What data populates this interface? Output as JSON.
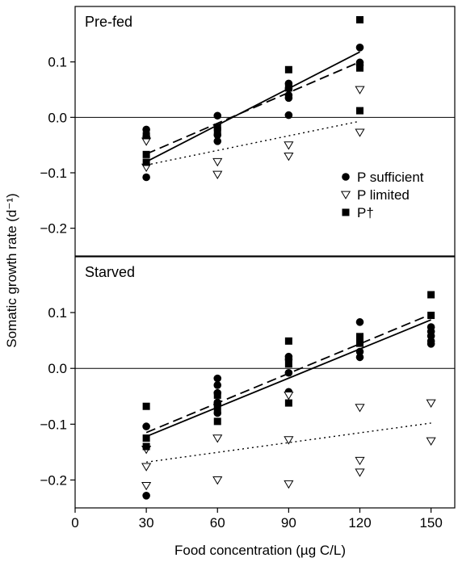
{
  "chart_data": {
    "type": "scatter",
    "xlabel": "Food concentration (µg C/L)",
    "ylabel": "Somatic growth rate (d⁻¹)",
    "xlim": [
      0,
      160
    ],
    "x_ticks": [
      "0",
      "30",
      "60",
      "90",
      "120",
      "150"
    ],
    "x_tick_values": [
      0,
      30,
      60,
      90,
      120,
      150
    ],
    "legend": {
      "placement": "upper panel, right",
      "entries": [
        {
          "key": "sufficient",
          "label": "P sufficient",
          "marker": "filled-circle"
        },
        {
          "key": "limited",
          "label": "P limited",
          "marker": "open-triangle-down"
        },
        {
          "key": "dagger",
          "label": "P†",
          "marker": "filled-square"
        }
      ]
    },
    "panels": [
      {
        "label": "Pre-fed",
        "ylim": [
          -0.25,
          0.2
        ],
        "y_ticks": [
          0.1,
          0.0,
          -0.1,
          -0.2
        ],
        "y_tick_labels": [
          "0.1",
          "0.0",
          "−0.1",
          "−0.2"
        ],
        "zero_line": true,
        "series": [
          {
            "key": "sufficient",
            "points": [
              [
                30,
                -0.022
              ],
              [
                30,
                -0.035
              ],
              [
                30,
                -0.108
              ],
              [
                60,
                0.003
              ],
              [
                60,
                -0.032
              ],
              [
                60,
                -0.043
              ],
              [
                90,
                0.061
              ],
              [
                90,
                0.052
              ],
              [
                90,
                0.04
              ],
              [
                90,
                0.035
              ],
              [
                90,
                0.004
              ],
              [
                120,
                0.126
              ],
              [
                120,
                0.099
              ],
              [
                120,
                0.094
              ]
            ]
          },
          {
            "key": "limited",
            "points": [
              [
                30,
                -0.043
              ],
              [
                30,
                -0.09
              ],
              [
                60,
                -0.08
              ],
              [
                60,
                -0.103
              ],
              [
                90,
                -0.05
              ],
              [
                90,
                -0.07
              ],
              [
                120,
                0.05
              ],
              [
                120,
                -0.027
              ]
            ]
          },
          {
            "key": "dagger",
            "points": [
              [
                30,
                -0.033
              ],
              [
                30,
                -0.067
              ],
              [
                30,
                -0.081
              ],
              [
                60,
                -0.018
              ],
              [
                60,
                -0.024
              ],
              [
                90,
                0.086
              ],
              [
                90,
                0.053
              ],
              [
                120,
                0.176
              ],
              [
                120,
                0.089
              ],
              [
                120,
                0.012
              ]
            ]
          }
        ],
        "fits": [
          {
            "key": "sufficient",
            "style": "solid",
            "from": [
              30,
              -0.08
            ],
            "to": [
              120,
              0.118
            ]
          },
          {
            "key": "dagger",
            "style": "dashed",
            "from": [
              30,
              -0.066
            ],
            "to": [
              120,
              0.1
            ]
          },
          {
            "key": "limited",
            "style": "dotted",
            "from": [
              30,
              -0.086
            ],
            "to": [
              120,
              -0.007
            ]
          }
        ]
      },
      {
        "label": "Starved",
        "ylim": [
          -0.25,
          0.2
        ],
        "y_ticks": [
          0.1,
          0.0,
          -0.1,
          -0.2
        ],
        "y_tick_labels": [
          "0.1",
          "0.0",
          "−0.1",
          "−0.2"
        ],
        "zero_line": true,
        "series": [
          {
            "key": "sufficient",
            "points": [
              [
                30,
                -0.104
              ],
              [
                30,
                -0.228
              ],
              [
                60,
                -0.018
              ],
              [
                60,
                -0.03
              ],
              [
                60,
                -0.044
              ],
              [
                60,
                -0.061
              ],
              [
                60,
                -0.065
              ],
              [
                60,
                -0.08
              ],
              [
                90,
                0.021
              ],
              [
                90,
                0.016
              ],
              [
                90,
                -0.008
              ],
              [
                90,
                -0.042
              ],
              [
                120,
                0.083
              ],
              [
                120,
                0.03
              ],
              [
                120,
                0.02
              ],
              [
                150,
                0.074
              ],
              [
                150,
                0.066
              ],
              [
                150,
                0.058
              ],
              [
                150,
                0.049
              ],
              [
                150,
                0.044
              ]
            ]
          },
          {
            "key": "limited",
            "points": [
              [
                30,
                -0.145
              ],
              [
                30,
                -0.176
              ],
              [
                30,
                -0.21
              ],
              [
                60,
                -0.125
              ],
              [
                60,
                -0.2
              ],
              [
                90,
                -0.048
              ],
              [
                90,
                -0.128
              ],
              [
                90,
                -0.207
              ],
              [
                120,
                -0.07
              ],
              [
                120,
                -0.165
              ],
              [
                120,
                -0.186
              ],
              [
                150,
                -0.062
              ],
              [
                150,
                -0.13
              ]
            ]
          },
          {
            "key": "dagger",
            "points": [
              [
                30,
                -0.068
              ],
              [
                30,
                -0.125
              ],
              [
                30,
                -0.14
              ],
              [
                60,
                -0.048
              ],
              [
                60,
                -0.072
              ],
              [
                60,
                -0.095
              ],
              [
                90,
                0.049
              ],
              [
                90,
                0.008
              ],
              [
                90,
                -0.062
              ],
              [
                120,
                0.057
              ],
              [
                120,
                0.045
              ],
              [
                150,
                0.132
              ],
              [
                150,
                0.095
              ]
            ]
          }
        ],
        "fits": [
          {
            "key": "sufficient",
            "style": "solid",
            "from": [
              30,
              -0.122
            ],
            "to": [
              150,
              0.087
            ]
          },
          {
            "key": "dagger",
            "style": "dashed",
            "from": [
              30,
              -0.115
            ],
            "to": [
              150,
              0.097
            ]
          },
          {
            "key": "limited",
            "style": "dotted",
            "from": [
              30,
              -0.168
            ],
            "to": [
              150,
              -0.098
            ]
          }
        ]
      }
    ]
  }
}
